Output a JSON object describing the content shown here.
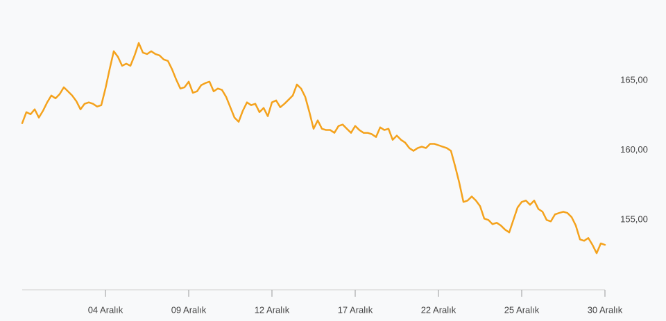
{
  "chart_data": {
    "type": "line",
    "color": "#f4a21c",
    "categories": [
      null,
      null,
      null,
      null,
      null,
      null,
      null,
      null,
      null,
      null,
      null,
      null,
      null,
      null,
      null,
      null,
      null,
      null,
      null,
      null,
      "04 Aralık",
      null,
      null,
      null,
      null,
      null,
      null,
      null,
      null,
      null,
      null,
      null,
      null,
      null,
      null,
      null,
      null,
      null,
      null,
      null,
      "09 Aralık",
      null,
      null,
      null,
      null,
      null,
      null,
      null,
      null,
      null,
      null,
      null,
      null,
      null,
      null,
      null,
      null,
      null,
      null,
      null,
      "12 Aralık",
      null,
      null,
      null,
      null,
      null,
      null,
      null,
      null,
      null,
      null,
      null,
      null,
      null,
      null,
      null,
      null,
      null,
      null,
      null,
      "17 Aralık",
      null,
      null,
      null,
      null,
      null,
      null,
      null,
      null,
      null,
      null,
      null,
      null,
      null,
      null,
      null,
      null,
      null,
      null,
      null,
      "22 Aralık",
      null,
      null,
      null,
      null,
      null,
      null,
      null,
      null,
      null,
      null,
      null,
      null,
      null,
      null,
      null,
      null,
      null,
      null,
      null,
      "25 Aralık",
      null,
      null,
      null,
      null,
      null,
      null,
      null,
      null,
      null,
      null,
      null,
      null,
      null,
      null,
      null,
      null,
      null,
      null,
      null,
      "30 Aralık"
    ],
    "values": [
      161.93,
      162.72,
      162.57,
      162.92,
      162.33,
      162.82,
      163.42,
      163.91,
      163.71,
      164.01,
      164.5,
      164.21,
      163.91,
      163.51,
      162.92,
      163.32,
      163.42,
      163.32,
      163.12,
      163.22,
      164.41,
      165.79,
      167.08,
      166.68,
      166.04,
      166.19,
      166.04,
      166.78,
      167.67,
      166.98,
      166.88,
      167.08,
      166.88,
      166.78,
      166.49,
      166.39,
      165.79,
      165.05,
      164.41,
      164.5,
      164.9,
      164.11,
      164.21,
      164.65,
      164.8,
      164.9,
      164.21,
      164.41,
      164.31,
      163.81,
      163.07,
      162.33,
      162.03,
      162.82,
      163.42,
      163.22,
      163.32,
      162.72,
      163.02,
      162.43,
      163.42,
      163.56,
      163.07,
      163.32,
      163.61,
      163.91,
      164.7,
      164.41,
      163.81,
      162.72,
      161.53,
      162.13,
      161.53,
      161.44,
      161.44,
      161.24,
      161.73,
      161.83,
      161.53,
      161.24,
      161.73,
      161.44,
      161.24,
      161.24,
      161.14,
      160.94,
      161.63,
      161.44,
      161.53,
      160.74,
      161.04,
      160.74,
      160.54,
      160.15,
      159.95,
      160.15,
      160.25,
      160.15,
      160.45,
      160.45,
      160.35,
      160.25,
      160.15,
      159.95,
      158.86,
      157.67,
      156.29,
      156.39,
      156.68,
      156.39,
      155.99,
      155.1,
      155.0,
      154.7,
      154.8,
      154.6,
      154.31,
      154.11,
      155.0,
      155.89,
      156.29,
      156.39,
      156.09,
      156.39,
      155.79,
      155.59,
      155.0,
      154.9,
      155.4,
      155.5,
      155.59,
      155.5,
      155.2,
      154.6,
      153.61,
      153.51,
      153.71,
      153.22,
      152.62,
      153.32,
      153.22
    ],
    "ylim": [
      150,
      170.75
    ],
    "yticks": [
      {
        "value": 155,
        "label": "155,00"
      },
      {
        "value": 160,
        "label": "160,00"
      },
      {
        "value": 165,
        "label": "165,00"
      }
    ]
  }
}
